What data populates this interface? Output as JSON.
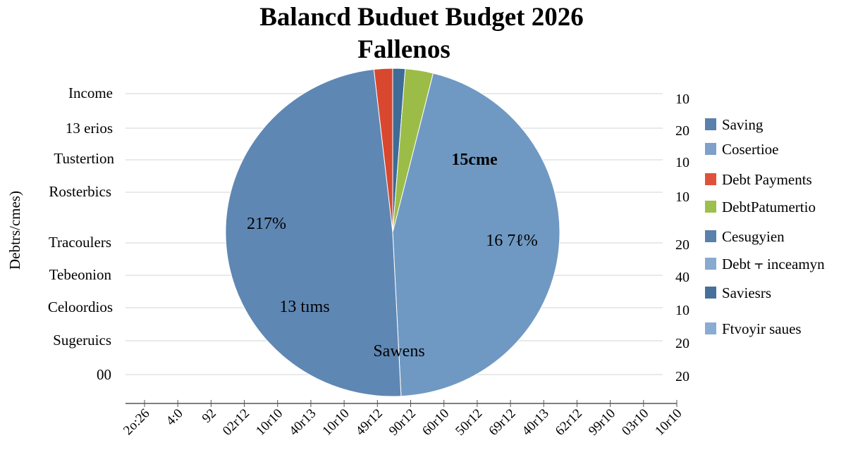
{
  "chart_data": {
    "type": "pie",
    "title": "Balancd Buduet Budget 2026",
    "subtitle": "Fallenos",
    "ylabel": "Debtrs/cmes)",
    "left_axis_labels": [
      "Income",
      "13 erios",
      "Tustertion",
      "Rosterbics",
      "Tracoulers",
      "Tebeonion",
      "Celoordios",
      "Sugeruics",
      "00"
    ],
    "right_axis_labels": [
      "10",
      "20",
      "10",
      "10",
      "20",
      "40",
      "10",
      "20",
      "20"
    ],
    "x_tick_labels": [
      "2o:26",
      "4:0",
      "92",
      "02r12",
      "10r10",
      "40r13",
      "10r10",
      "49r12",
      "90r12",
      "60r10",
      "50r12",
      "69r12",
      "40r13",
      "62r12",
      "99r10",
      "03r10",
      "10r10"
    ],
    "grid": true,
    "legend_position": "right",
    "slices": [
      {
        "name": "Saving",
        "value": 1.8,
        "color": "#d9472f"
      },
      {
        "name": "Debt Payments",
        "value": 1.2,
        "color": "#3e6c96"
      },
      {
        "name": "Cosertioe",
        "value": 2.7,
        "color": "#9cbc48"
      },
      {
        "name": "Cesugyien",
        "value": 45.3,
        "color": "#6f99c2"
      },
      {
        "name": "Saviesrs",
        "value": 49.0,
        "color": "#5f87b3"
      }
    ],
    "slice_labels": [
      "15cme",
      "16 7ℓ%",
      "217%",
      "13 tıms",
      "Sawens"
    ],
    "legend": [
      {
        "label": "Saving",
        "color": "#5a80ac"
      },
      {
        "label": "Cosertioe",
        "color": "#7ea0c9"
      },
      {
        "label": "Debt Payments",
        "color": "#e0513b"
      },
      {
        "label": "DebtPatumertio",
        "color": "#9cc04b"
      },
      {
        "label": "Cesugyien",
        "color": "#5a80ac"
      },
      {
        "label": "Debt ⫟ inceamyn",
        "color": "#88a9d0"
      },
      {
        "label": "Saviesrs",
        "color": "#46709b"
      },
      {
        "label": "Ftvoyir saues",
        "color": "#8aabd2"
      }
    ]
  }
}
